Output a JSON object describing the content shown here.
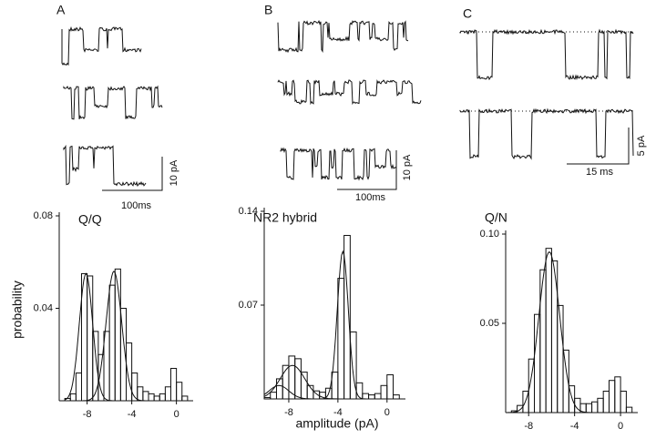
{
  "panels": [
    {
      "label": "A",
      "time_scale": "100ms",
      "current_scale": "10 pA"
    },
    {
      "label": "B",
      "time_scale": "100ms",
      "current_scale": "10 pA"
    },
    {
      "label": "C",
      "time_scale": "15 ms",
      "current_scale": "5 pA"
    }
  ],
  "chart_data": [
    {
      "type": "histogram",
      "title": "Q/Q",
      "ylabel": "probability",
      "bins": [
        -10,
        -9.5,
        -9,
        -8.5,
        -8,
        -7.5,
        -7,
        -6.5,
        -6,
        -5.5,
        -5,
        -4.5,
        -4,
        -3.5,
        -3,
        -2.5,
        -2,
        -1.5,
        -1,
        -0.5,
        0,
        0.5,
        1
      ],
      "values": [
        0.001,
        0.003,
        0.012,
        0.055,
        0.054,
        0.03,
        0.02,
        0.03,
        0.05,
        0.057,
        0.04,
        0.025,
        0.012,
        0.006,
        0.004,
        0.003,
        0.002,
        0.003,
        0.006,
        0.014,
        0.008,
        0.002
      ],
      "fits": [
        {
          "mean": -8.1,
          "sd": 0.6,
          "peak": 0.055
        },
        {
          "mean": -5.6,
          "sd": 0.7,
          "peak": 0.056
        }
      ],
      "xlim": [
        -10.5,
        1.5
      ],
      "ylim": [
        0,
        0.08
      ],
      "xticks": [
        -8,
        -4,
        0
      ],
      "yticks": [
        0.04,
        0.08
      ]
    },
    {
      "type": "histogram",
      "title": "NR2 hybrid",
      "xlabel": "amplitude (pA)",
      "bins": [
        -10,
        -9.5,
        -9,
        -8.5,
        -8,
        -7.5,
        -7,
        -6.5,
        -6,
        -5.5,
        -5,
        -4.5,
        -4,
        -3.5,
        -3,
        -2.5,
        -2,
        -1.5,
        -1,
        -0.5,
        0,
        0.5,
        1
      ],
      "values": [
        0.001,
        0.005,
        0.015,
        0.025,
        0.032,
        0.03,
        0.02,
        0.01,
        0.006,
        0.005,
        0.008,
        0.02,
        0.09,
        0.122,
        0.05,
        0.012,
        0.004,
        0.003,
        0.004,
        0.01,
        0.018,
        0.003
      ],
      "fits": [
        {
          "mean": -3.6,
          "sd": 0.45,
          "peak": 0.11
        },
        {
          "mean": -7.7,
          "sd": 1,
          "peak": 0.025
        },
        {
          "mean": -8.8,
          "sd": 0.8,
          "peak": 0.01
        }
      ],
      "xlim": [
        -10,
        1.5
      ],
      "ylim": [
        0,
        0.14
      ],
      "xticks": [
        -8,
        -4,
        0
      ],
      "yticks": [
        0.07,
        0.14
      ]
    },
    {
      "type": "histogram",
      "title": "Q/N",
      "bins": [
        -10,
        -9.5,
        -9,
        -8.5,
        -8,
        -7.5,
        -7,
        -6.5,
        -6,
        -5.5,
        -5,
        -4.5,
        -4,
        -3.5,
        -3,
        -2.5,
        -2,
        -1.5,
        -1,
        -0.5,
        0,
        0.5,
        1
      ],
      "values": [
        0,
        0.001,
        0.004,
        0.012,
        0.03,
        0.055,
        0.08,
        0.092,
        0.085,
        0.06,
        0.035,
        0.015,
        0.008,
        0.005,
        0.005,
        0.006,
        0.008,
        0.012,
        0.018,
        0.02,
        0.012,
        0.003
      ],
      "fits": [
        {
          "mean": -6.2,
          "sd": 0.9,
          "peak": 0.09
        }
      ],
      "xlim": [
        -10,
        1.5
      ],
      "ylim": [
        0,
        0.1
      ],
      "xticks": [
        -8,
        -4,
        0
      ],
      "yticks": [
        0.05,
        {
          "value": 0.1,
          "label": "0.10"
        }
      ]
    }
  ]
}
